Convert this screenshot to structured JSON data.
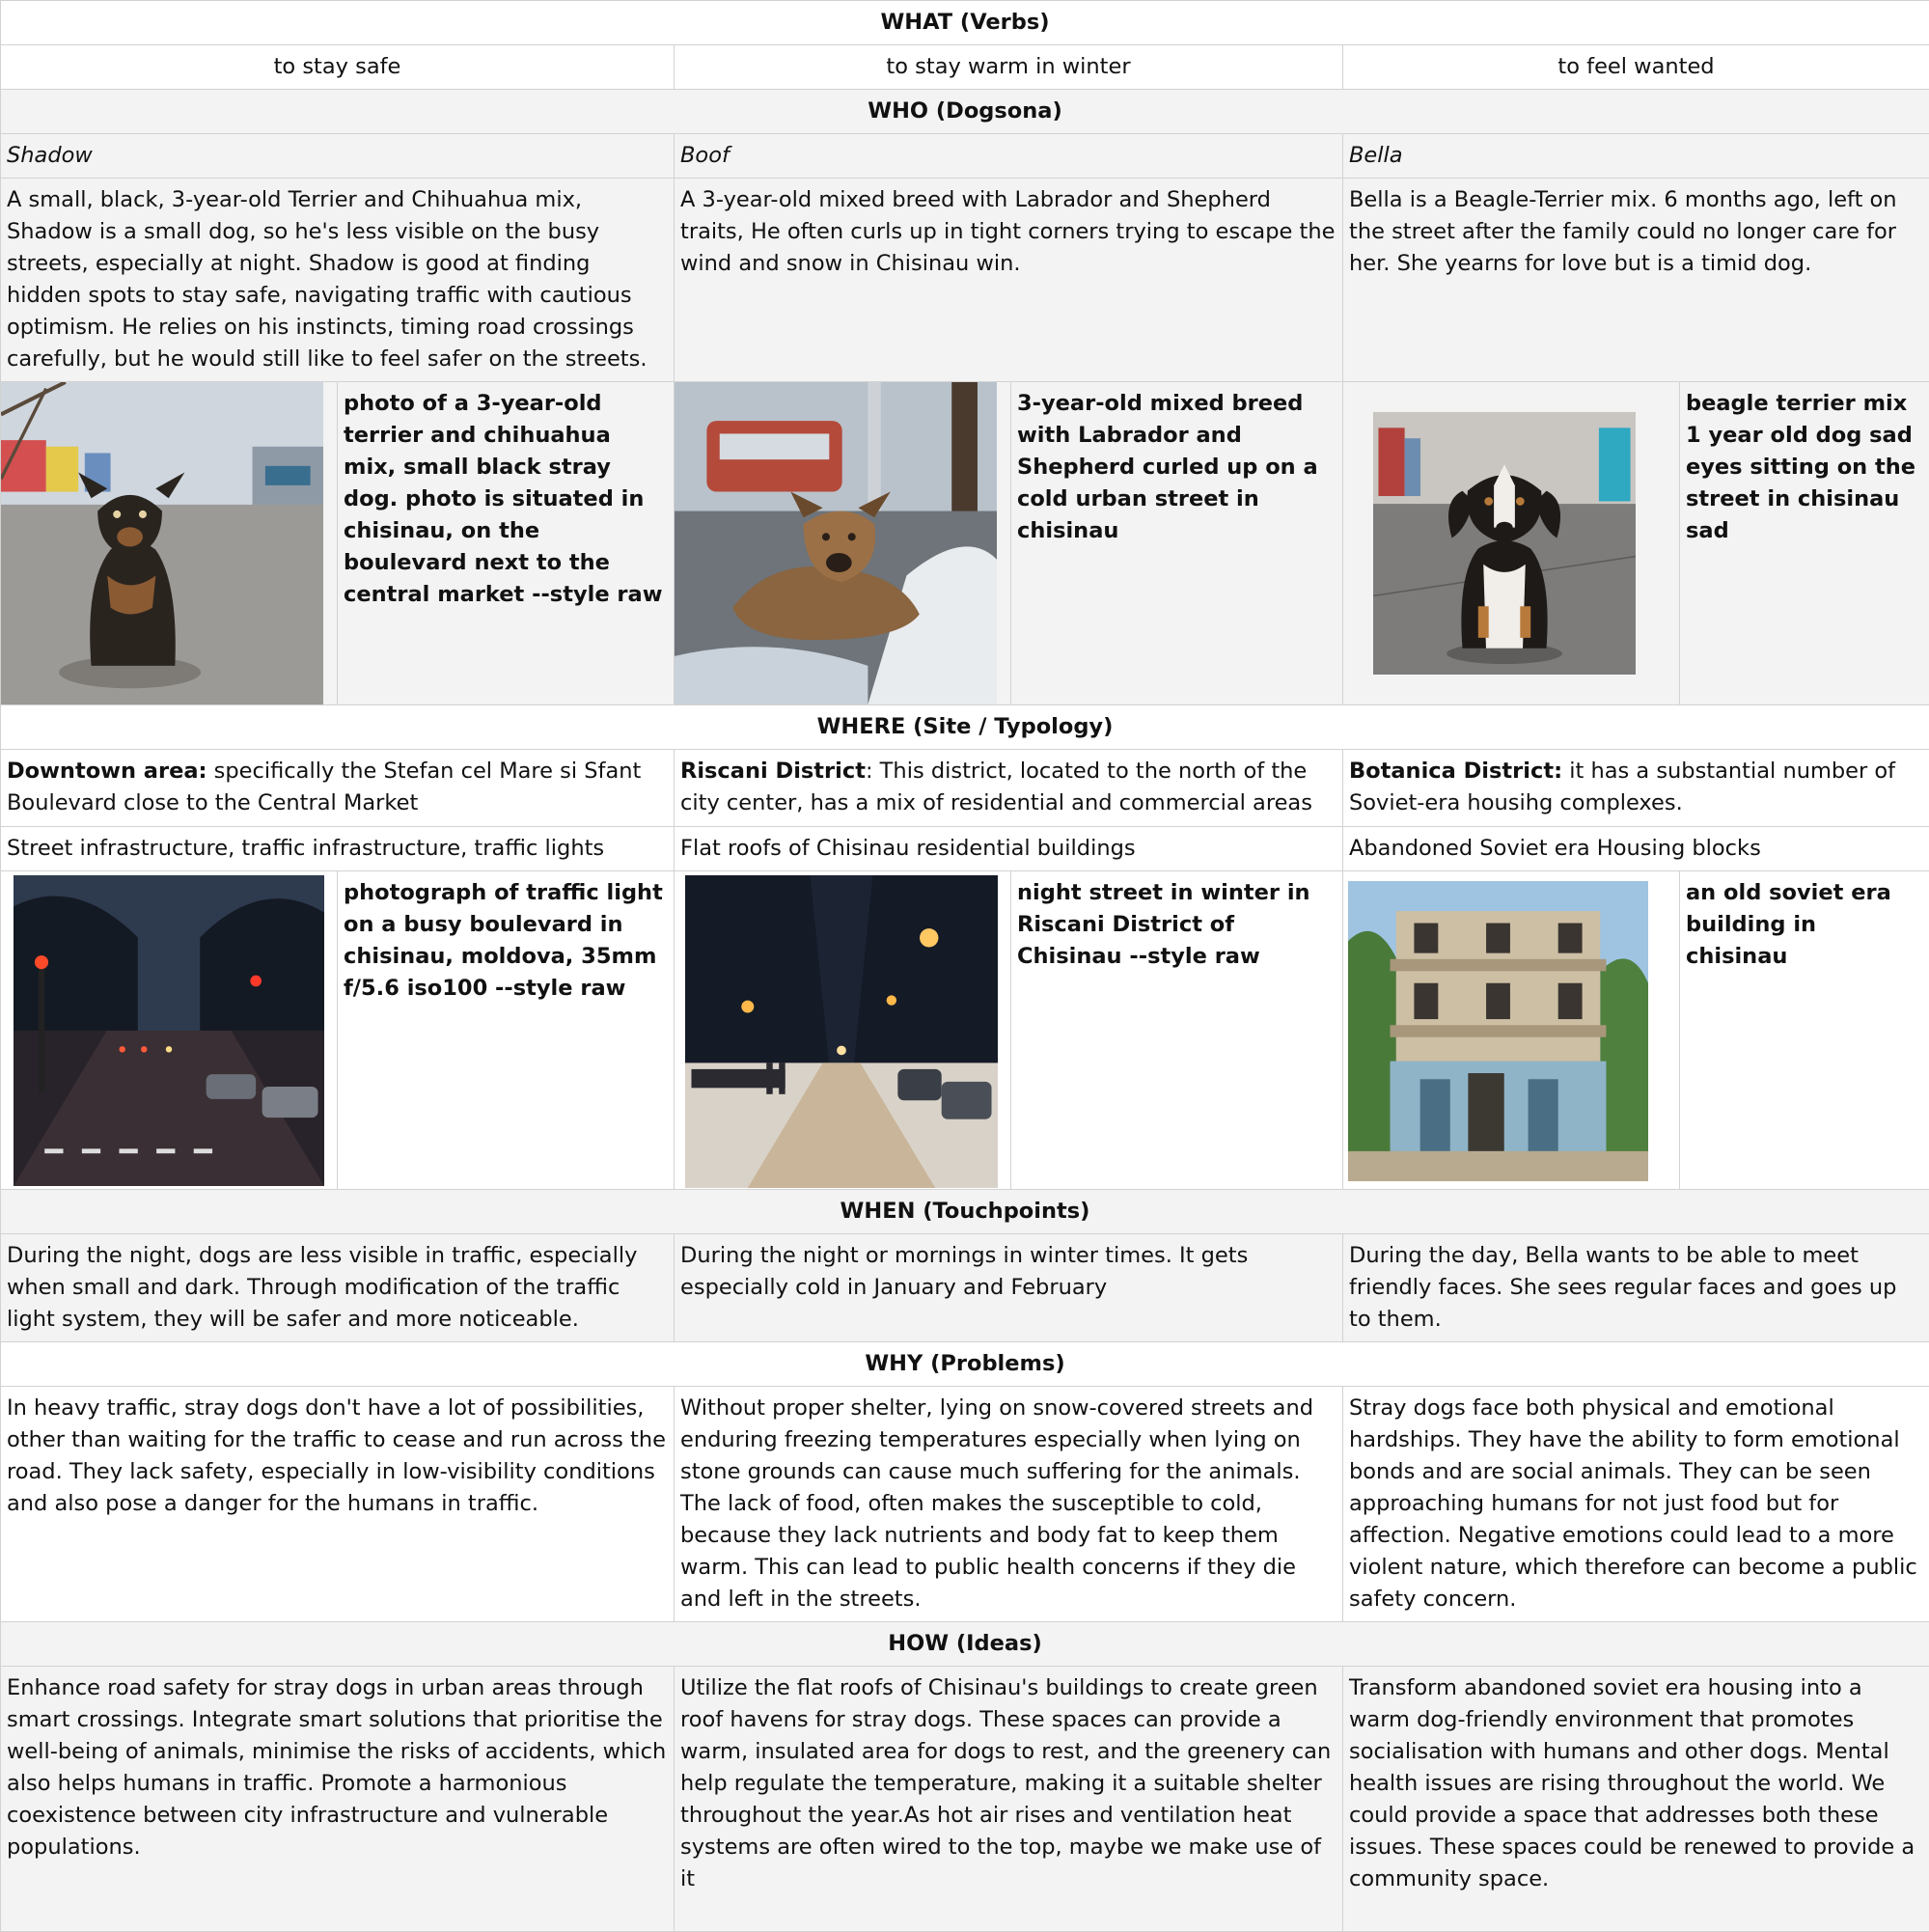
{
  "what": {
    "heading": "WHAT (Verbs)",
    "verbs": [
      "to stay safe",
      "to stay warm in winter",
      "to feel wanted"
    ]
  },
  "who": {
    "heading": "WHO (Dogsona)",
    "names": [
      "Shadow",
      "Boof",
      "Bella"
    ],
    "descriptions": [
      "A small, black, 3-year-old Terrier and Chihuahua mix, Shadow is a small dog, so he's less visible on the busy streets, especially at night. Shadow is good at finding hidden spots to stay safe, navigating traffic with cautious optimism. He relies on his instincts, timing road crossings carefully, but he would still like to feel safer on the streets.",
      "A 3-year-old mixed breed with Labrador and Shepherd traits,  He often curls up in tight corners trying to escape the wind and snow in Chisinau win.",
      "Bella is a Beagle-Terrier mix. 6 months ago, left on the street after the family could no longer care for her. She yearns for love but is a timid dog."
    ],
    "prompts": [
      "photo of a 3-year-old terrier and chihuahua mix, small black stray dog. photo is situated in chisinau, on the boulevard next to the central market --style raw",
      "3-year-old mixed breed with Labrador and Shepherd curled up on a cold urban street in chisinau",
      "beagle terrier mix 1 year old dog sad eyes sitting on the street in chisinau sad"
    ]
  },
  "where": {
    "heading": "WHERE (Site / Typology)",
    "sites": [
      {
        "lead": "Downtown area:",
        "text": " specifically the Stefan cel Mare si Sfant Boulevard close to the Central Market"
      },
      {
        "lead": "Riscani District",
        "text": ": This district, located to the north of the city center, has a mix of residential and commercial areas"
      },
      {
        "lead": "Botanica District:",
        "text": " it has a substantial number of Soviet-era housihg complexes."
      }
    ],
    "typologies": [
      "Street infrastructure, traffic infrastructure, traffic lights",
      "Flat roofs of Chisinau residential buildings",
      "Abandoned Soviet era Housing blocks"
    ],
    "prompts": [
      "photograph of traffic light on a busy boulevard in chisinau, moldova, 35mm f/5.6 iso100 --style raw",
      "night street in winter in Riscani District of Chisinau --style raw",
      "an old soviet era building in chisinau"
    ]
  },
  "when": {
    "heading": "WHEN (Touchpoints)",
    "texts": [
      "During the night, dogs are less visible in traffic, especially when small and dark. Through modification of the traffic light system, they will be safer and more noticeable.",
      "During the night or mornings in winter times. It gets especially cold in January and February",
      "During the day, Bella wants to be able to meet friendly faces. She sees regular faces and goes up to them."
    ]
  },
  "why": {
    "heading": "WHY (Problems)",
    "texts": [
      "In heavy traffic, stray dogs don't have a lot of possibilities, other than waiting for the traffic to cease and run across the road. They lack safety, especially in low-visibility conditions and also pose a danger for the humans in traffic.",
      "Without proper shelter, lying on snow-covered streets and enduring freezing temperatures especially when lying on stone grounds can cause much suffering for the animals. The lack of food, often makes the susceptible to cold, because they lack nutrients and body fat to keep them warm. This can lead to public health concerns if they die and left in the streets.",
      "Stray dogs face both physical and emotional hardships. They have the ability to form emotional bonds and are social animals. They can be seen approaching humans for not just food but for affection. Negative emotions could lead to a more violent nature, which therefore can become a public safety concern."
    ]
  },
  "how": {
    "heading": "HOW (Ideas)",
    "texts": [
      "Enhance road safety for stray dogs in urban areas through smart crossings. Integrate smart solutions that prioritise the well-being of animals, minimise the risks of accidents, which also helps humans in traffic. Promote a harmonious coexistence between city infrastructure and vulnerable populations.",
      "Utilize the flat roofs of Chisinau's buildings to create green roof havens for stray dogs. These spaces can provide a warm, insulated area for dogs to rest, and the greenery can help regulate the temperature, making it a suitable shelter throughout the year.As hot air rises and ventilation heat systems are often wired to the top, maybe we make use of it",
      "Transform abandoned soviet era housing into a warm dog-friendly environment that promotes socialisation with humans and other dogs. Mental health issues are rising throughout the world. We could provide a space that addresses both these issues. These spaces could be renewed to provide a community space."
    ]
  }
}
